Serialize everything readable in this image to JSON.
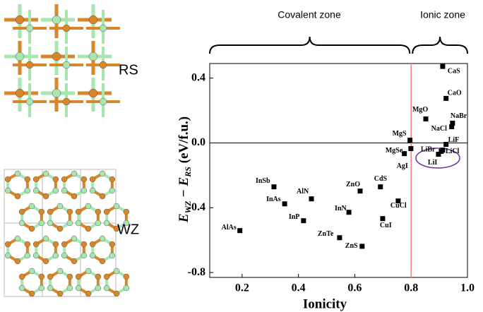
{
  "figure": {
    "rs_label": "RS",
    "wz_label": "WZ"
  },
  "chart_data": {
    "type": "scatter",
    "zones": [
      "Covalent zone",
      "Ionic zone"
    ],
    "ylabel_parts": [
      "E",
      "WZ",
      " − E",
      "RS",
      " (eV/f.u.)"
    ],
    "xlabel": "Ionicity",
    "labels": [
      "AlAs",
      "InSb",
      "InAs",
      "InP",
      "AlN",
      "ZnTe",
      "InN",
      "ZnO",
      "ZnS",
      "CdS",
      "CuCl",
      "CuI",
      "AgI",
      "MgS",
      "MgSe",
      "MgO",
      "CaS",
      "CaO",
      "NaBr",
      "NaCl",
      "LiF",
      "LiCl",
      "LiBr",
      "LiI"
    ],
    "x": [
      0.192,
      0.313,
      0.351,
      0.418,
      0.446,
      0.546,
      0.579,
      0.619,
      0.626,
      0.691,
      0.754,
      0.699,
      0.776,
      0.796,
      0.799,
      0.852,
      0.912,
      0.924,
      0.947,
      0.944,
      0.924,
      0.912,
      0.907,
      0.897
    ],
    "values": [
      -0.541,
      -0.271,
      -0.376,
      -0.48,
      -0.345,
      -0.585,
      -0.428,
      -0.297,
      -0.638,
      -0.271,
      -0.358,
      -0.467,
      -0.066,
      0.017,
      -0.035,
      0.148,
      0.472,
      0.275,
      0.122,
      0.1,
      -0.009,
      -0.044,
      -0.052,
      -0.07
    ],
    "color": "#000000",
    "xlim": [
      0.085,
      1.0
    ],
    "ylim": [
      -0.83,
      0.49
    ],
    "xticks": [
      0.2,
      0.4,
      0.6,
      0.8,
      {
        "value": 1.0,
        "label": "1.0"
      }
    ],
    "yticks": [
      0.4,
      {
        "value": 0,
        "label": "0.0"
      },
      -0.4,
      -0.8
    ],
    "hline": 0,
    "hline_color": "#000000",
    "vline": 0.8,
    "vline_color": "#f08080"
  }
}
